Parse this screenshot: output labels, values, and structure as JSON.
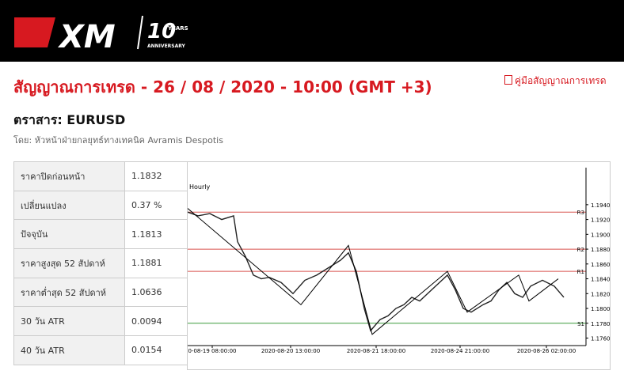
{
  "header": {
    "logo": "XM",
    "badge_number": "10",
    "badge_years": "YEARS",
    "badge_word": "ANNIVERSARY"
  },
  "title": "สัญญาณการเทรด - 26 / 08 / 2020 - 10:00 (GMT +3)",
  "guide_link": "คู่มือสัญญาณการเทรด",
  "instrument": "ตราสาร: EURUSD",
  "byline": "โดย: หัวหน้าฝ่ายกลยุทธ์ทางเทคนิค Avramis Despotis",
  "table": {
    "rows": [
      [
        "ราคาปิดก่อนหน้า",
        "1.1832"
      ],
      [
        "เปลี่ยนแปลง",
        "0.37 %"
      ],
      [
        "ปัจจุบัน",
        "1.1813"
      ],
      [
        "ราคาสูงสุด 52 สัปดาห์",
        "1.1881"
      ],
      [
        "ราคาต่ำสุด 52 สัปดาห์",
        "1.0636"
      ],
      [
        "30 วัน ATR",
        "0.0094"
      ],
      [
        "40 วัน ATR",
        "0.0154"
      ]
    ]
  },
  "chart_data": {
    "type": "line",
    "timeframe": "Hourly",
    "xlim": [
      0,
      100
    ],
    "ylim": [
      1.1752,
      1.199
    ],
    "xticks": [
      {
        "value": 6.2,
        "label": "0-08-19 08:00:00"
      },
      {
        "value": 26,
        "label": "2020-08-20 13:00:00"
      },
      {
        "value": 47.6,
        "label": "2020-08-21 18:00:00"
      },
      {
        "value": 68.8,
        "label": "2020-08-24 21:00:00"
      },
      {
        "value": 90.6,
        "label": "2020-08-26 02:00:00"
      }
    ],
    "yticks": [
      {
        "value": 1.194,
        "label": "1.1940"
      },
      {
        "value": 1.192,
        "label": "1.1920"
      },
      {
        "value": 1.19,
        "label": "1.1900"
      },
      {
        "value": 1.188,
        "label": "1.1880"
      },
      {
        "value": 1.186,
        "label": "1.1860"
      },
      {
        "value": 1.184,
        "label": "1.1840"
      },
      {
        "value": 1.182,
        "label": "1.1820"
      },
      {
        "value": 1.18,
        "label": "1.1800"
      },
      {
        "value": 1.178,
        "label": "1.1780"
      },
      {
        "value": 1.176,
        "label": "1.1760"
      }
    ],
    "levels": [
      {
        "name": "R3",
        "value": 1.193,
        "color": "#d9534f"
      },
      {
        "name": "R2",
        "value": 1.188,
        "color": "#d9534f"
      },
      {
        "name": "R1",
        "value": 1.185,
        "color": "#d9534f"
      },
      {
        "name": "S1",
        "value": 1.178,
        "color": "#3c9a3c"
      }
    ],
    "series": [
      {
        "color": "#222222",
        "x": [
          0,
          2.6,
          5.6,
          8.6,
          11.6,
          12.6,
          14.6,
          16.6,
          18.6,
          20.6,
          23.6,
          26.6,
          29.6,
          32.6,
          35.6,
          38.6,
          40.6,
          42.6,
          44.6,
          46.2,
          48.6,
          50.6,
          52.6,
          54.6,
          56.6,
          58.6,
          60.6,
          63.6,
          65.6,
          67.6,
          69.6,
          71.6,
          74.6,
          76.6,
          78.6,
          80.6,
          82.6,
          84.6,
          86.6,
          89.6,
          92.6,
          95
        ],
        "values": [
          1.193,
          1.1925,
          1.1928,
          1.192,
          1.1925,
          1.189,
          1.187,
          1.1845,
          1.184,
          1.1842,
          1.1835,
          1.182,
          1.1838,
          1.1845,
          1.1855,
          1.1865,
          1.1875,
          1.185,
          1.18,
          1.177,
          1.1785,
          1.179,
          1.18,
          1.1805,
          1.1815,
          1.181,
          1.182,
          1.1835,
          1.1845,
          1.1825,
          1.18,
          1.1795,
          1.1805,
          1.181,
          1.1825,
          1.1835,
          1.182,
          1.1815,
          1.183,
          1.1838,
          1.183,
          1.1815
        ]
      },
      {
        "color": "#000000",
        "x": [
          0,
          28.6,
          40.6,
          46.6,
          65.6,
          70.6,
          83.6,
          86.2,
          93.6
        ],
        "values": [
          1.1935,
          1.1805,
          1.1885,
          1.1765,
          1.185,
          1.1795,
          1.1845,
          1.181,
          1.184
        ]
      }
    ]
  }
}
